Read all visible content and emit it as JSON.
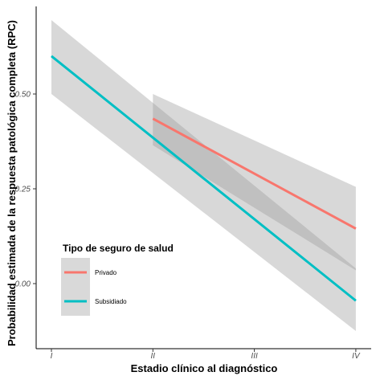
{
  "chart_data": {
    "type": "line",
    "title": "",
    "xlabel": "Estadio clínico al diagnóstico",
    "ylabel": "Probabilidad estimada de la respuesta patológica completa (RPC)",
    "categories": [
      "I",
      "II",
      "III",
      "IV"
    ],
    "y_ticks": [
      "0.00",
      "0.25",
      "0.50"
    ],
    "ylim": [
      -0.16,
      0.76
    ],
    "grid": false,
    "legend": {
      "title": "Tipo de seguro de salud",
      "position": "bottom-left"
    },
    "series": [
      {
        "name": "Privado",
        "color": "#F8766D",
        "x": [
          2,
          4
        ],
        "values": [
          0.435,
          0.145
        ],
        "ci_lower": [
          0.365,
          0.035
        ],
        "ci_upper": [
          0.5,
          0.255
        ]
      },
      {
        "name": "Subsidiado",
        "color": "#00BFC4",
        "x": [
          1,
          4
        ],
        "values": [
          0.6,
          -0.045
        ],
        "ci_lower": [
          0.5,
          -0.125
        ],
        "ci_upper": [
          0.695,
          0.04
        ]
      }
    ]
  }
}
